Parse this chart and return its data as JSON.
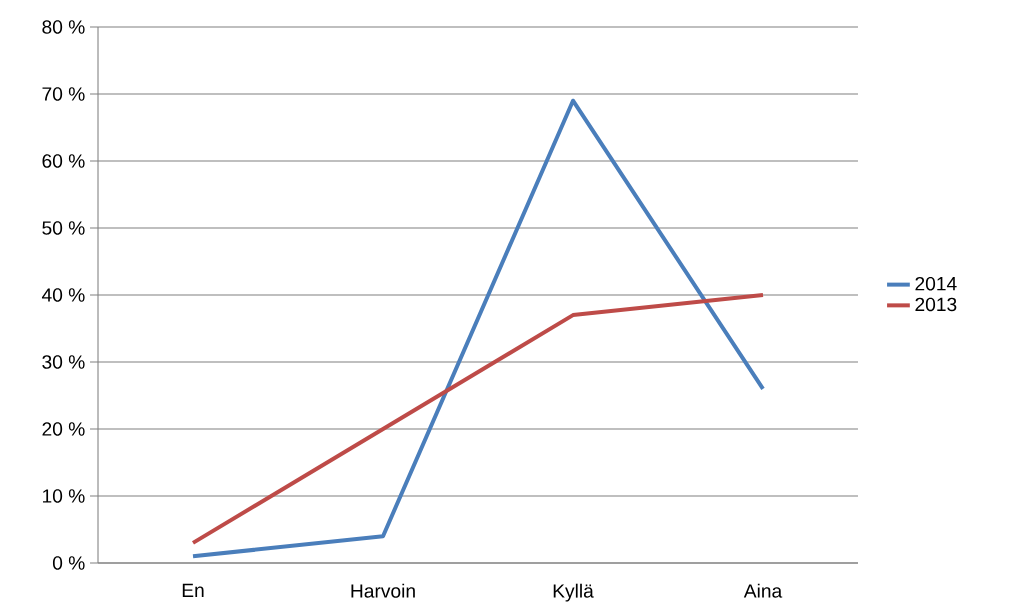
{
  "chart_data": {
    "type": "line",
    "categories": [
      "En",
      "Harvoin",
      "Kyllä",
      "Aina"
    ],
    "series": [
      {
        "name": "2014",
        "color": "#4a7ebb",
        "values": [
          1,
          4,
          69,
          26
        ]
      },
      {
        "name": "2013",
        "color": "#be4b48",
        "values": [
          3,
          20,
          37,
          40
        ]
      }
    ],
    "ylim": [
      0,
      80
    ],
    "yticks": [
      {
        "value": 0,
        "label": "0 %"
      },
      {
        "value": 10,
        "label": "10 %"
      },
      {
        "value": 20,
        "label": "20 %"
      },
      {
        "value": 30,
        "label": "30 %"
      },
      {
        "value": 40,
        "label": "40 %"
      },
      {
        "value": 50,
        "label": "50 %"
      },
      {
        "value": 60,
        "label": "60 %"
      },
      {
        "value": 70,
        "label": "70 %"
      },
      {
        "value": 80,
        "label": "80 %"
      }
    ],
    "grid": "y",
    "legend": "right",
    "marker": "none",
    "line_style": "solid"
  }
}
